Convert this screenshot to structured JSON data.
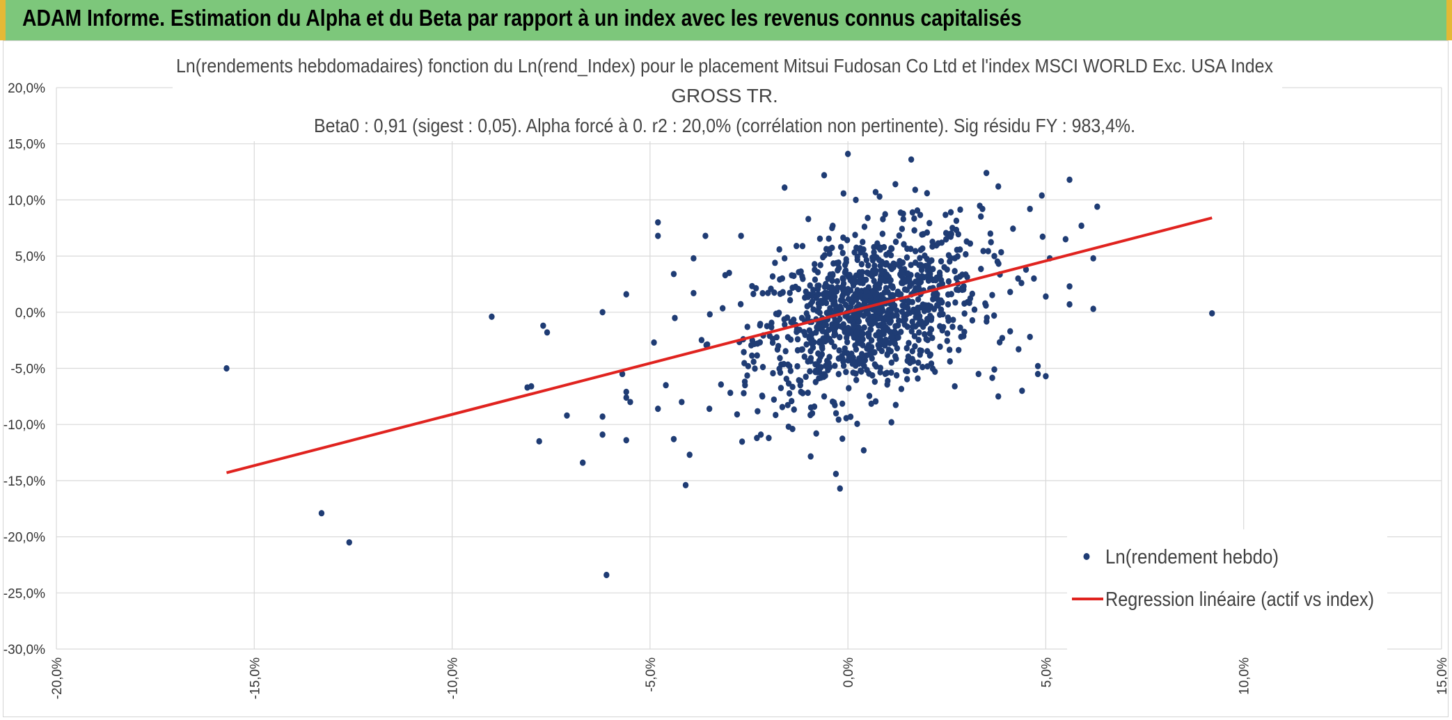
{
  "banner": {
    "title": "ADAM Informe. Estimation du Alpha et du Beta par rapport à un index avec les revenus connus capitalisés"
  },
  "chart_data": {
    "type": "scatter",
    "title_lines": [
      "Ln(rendements hebdomadaires) fonction du Ln(rend_Index) pour le placement Mitsui Fudosan Co Ltd et l'index MSCI WORLD Exc. USA Index",
      "GROSS TR.",
      "Beta0 : 0,91 (sigest : 0,05). Alpha forcé à 0. r2 : 20,0% (corrélation non pertinente). Sig résidu FY : 983,4%."
    ],
    "xlim": [
      -0.2,
      0.15
    ],
    "ylim": [
      -0.3,
      0.2
    ],
    "x_ticks": [
      "-20,0%",
      "-15,0%",
      "-10,0%",
      "-5,0%",
      "0,0%",
      "5,0%",
      "10,0%",
      "15,0%"
    ],
    "y_ticks": [
      "20,0%",
      "15,0%",
      "10,0%",
      "5,0%",
      "0,0%",
      "-5,0%",
      "-10,0%",
      "-15,0%",
      "-20,0%",
      "-25,0%",
      "-30,0%"
    ],
    "grid": true,
    "legend_position": "bottom-right",
    "series": [
      {
        "name": "Ln(rendement hebdo)",
        "kind": "scatter",
        "color": "#1f3c74",
        "points": [
          [
            -0.157,
            -0.05
          ],
          [
            -0.133,
            -0.179
          ],
          [
            -0.126,
            -0.205
          ],
          [
            -0.09,
            -0.004
          ],
          [
            -0.08,
            -0.066
          ],
          [
            -0.081,
            -0.067
          ],
          [
            -0.077,
            -0.012
          ],
          [
            -0.076,
            -0.018
          ],
          [
            -0.078,
            -0.115
          ],
          [
            -0.071,
            -0.092
          ],
          [
            -0.067,
            -0.134
          ],
          [
            -0.062,
            0.0
          ],
          [
            -0.062,
            -0.093
          ],
          [
            -0.062,
            -0.109
          ],
          [
            -0.061,
            -0.234
          ],
          [
            -0.057,
            -0.055
          ],
          [
            -0.056,
            -0.071
          ],
          [
            -0.056,
            -0.076
          ],
          [
            -0.056,
            -0.114
          ],
          [
            -0.055,
            -0.08
          ],
          [
            -0.056,
            0.016
          ],
          [
            -0.048,
            0.08
          ],
          [
            -0.048,
            0.068
          ],
          [
            -0.049,
            -0.027
          ],
          [
            -0.048,
            -0.086
          ],
          [
            -0.046,
            -0.065
          ],
          [
            -0.044,
            0.034
          ],
          [
            -0.044,
            -0.113
          ],
          [
            -0.042,
            -0.08
          ],
          [
            -0.041,
            -0.154
          ],
          [
            -0.04,
            -0.127
          ],
          [
            -0.039,
            0.048
          ],
          [
            -0.039,
            0.017
          ],
          [
            -0.036,
            0.068
          ],
          [
            -0.035,
            -0.086
          ],
          [
            -0.031,
            0.033
          ],
          [
            -0.03,
            0.035
          ],
          [
            -0.028,
            -0.091
          ],
          [
            -0.027,
            0.068
          ],
          [
            -0.026,
            -0.065
          ],
          [
            -0.023,
            -0.112
          ],
          [
            -0.022,
            -0.109
          ],
          [
            -0.02,
            -0.112
          ],
          [
            -0.016,
            0.048
          ],
          [
            -0.016,
            0.111
          ],
          [
            -0.015,
            -0.102
          ],
          [
            -0.014,
            -0.104
          ],
          [
            -0.013,
            0.059
          ],
          [
            -0.01,
            0.083
          ],
          [
            -0.009,
            -0.09
          ],
          [
            -0.008,
            -0.108
          ],
          [
            -0.006,
            0.122
          ],
          [
            -0.006,
            -0.075
          ],
          [
            -0.004,
            0.075
          ],
          [
            -0.003,
            -0.09
          ],
          [
            -0.002,
            -0.157
          ],
          [
            0.0,
            0.141
          ],
          [
            0.002,
            0.1
          ],
          [
            0.004,
            -0.123
          ],
          [
            0.005,
            0.084
          ],
          [
            0.007,
            0.107
          ],
          [
            0.008,
            0.103
          ],
          [
            0.011,
            -0.098
          ],
          [
            0.012,
            0.114
          ],
          [
            0.014,
            0.083
          ],
          [
            0.016,
            0.136
          ],
          [
            0.017,
            0.109
          ],
          [
            0.02,
            0.106
          ],
          [
            0.02,
            0.071
          ],
          [
            0.022,
            -0.053
          ],
          [
            0.026,
            0.089
          ],
          [
            0.027,
            -0.066
          ],
          [
            0.03,
            0.063
          ],
          [
            0.033,
            -0.055
          ],
          [
            0.034,
            0.092
          ],
          [
            0.035,
            0.124
          ],
          [
            0.036,
            0.07
          ],
          [
            0.037,
            0.05
          ],
          [
            0.037,
            -0.051
          ],
          [
            0.038,
            -0.075
          ],
          [
            0.038,
            0.112
          ],
          [
            0.039,
            -0.023
          ],
          [
            0.041,
            -0.017
          ],
          [
            0.041,
            0.018
          ],
          [
            0.043,
            0.03
          ],
          [
            0.044,
            -0.07
          ],
          [
            0.045,
            0.038
          ],
          [
            0.046,
            0.092
          ],
          [
            0.046,
            -0.022
          ],
          [
            0.047,
            0.03
          ],
          [
            0.048,
            -0.048
          ],
          [
            0.048,
            -0.055
          ],
          [
            0.049,
            0.104
          ],
          [
            0.05,
            -0.057
          ],
          [
            0.05,
            0.014
          ],
          [
            0.051,
            0.048
          ],
          [
            0.055,
            0.065
          ],
          [
            0.056,
            0.118
          ],
          [
            0.056,
            0.023
          ],
          [
            0.056,
            0.007
          ],
          [
            0.059,
            0.077
          ],
          [
            0.062,
            0.003
          ],
          [
            0.062,
            0.048
          ],
          [
            0.063,
            0.094
          ],
          [
            0.092,
            -0.001
          ]
        ],
        "cluster": {
          "count": 1050,
          "center": [
            0.005,
            0.0
          ],
          "sd": [
            0.014,
            0.034
          ],
          "beta": 0.91
        }
      },
      {
        "name": "Regression linéaire (actif vs index)",
        "kind": "line",
        "color": "#e0231f",
        "x": [
          -0.157,
          0.092
        ],
        "y": [
          -0.143,
          0.084
        ]
      }
    ]
  }
}
